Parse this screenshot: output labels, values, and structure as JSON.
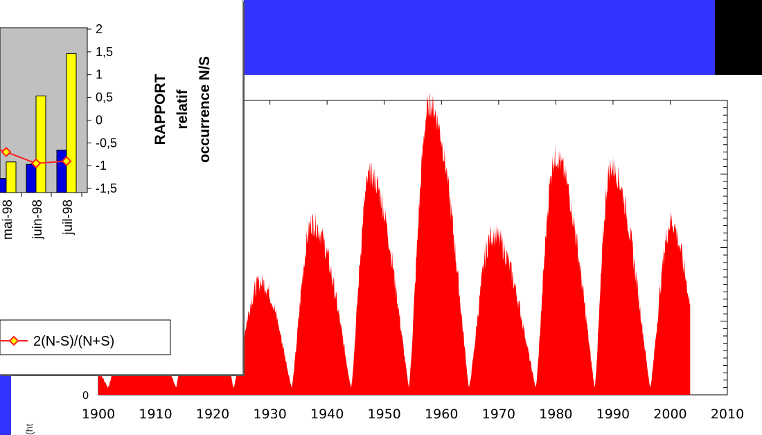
{
  "colors": {
    "background": "#000000",
    "banner": "#3333ff",
    "plot_bg": "#ffffff",
    "sunspot_fill": "#ff0000",
    "inset_plot_bg": "#c0c0c0",
    "bar_north": "#0000dd",
    "bar_south": "#ffff00",
    "ratio_line": "#ff2020"
  },
  "main_plot": {
    "cut_ylabel": "(ht",
    "y_zero_label": "0"
  },
  "inset": {
    "y2_label_lines": [
      "RAPPORT",
      "relatif",
      "occurrence N/S"
    ],
    "legend_entry": "2(N-S)/(N+S)"
  },
  "chart_data": [
    {
      "type": "area",
      "x_tick_labels": [
        "1900",
        "1910",
        "1920",
        "1930",
        "1940",
        "1950",
        "1960",
        "1970",
        "1980",
        "1990",
        "2000",
        "2010"
      ],
      "xlim": [
        1900,
        2010
      ],
      "y_tick_labels": [
        "0"
      ],
      "ylim": [
        0,
        200
      ],
      "grid": false,
      "cycles": [
        {
          "min_year": 1901.7,
          "max_year": 1906.0,
          "max_value": 64
        },
        {
          "min_year": 1913.6,
          "max_year": 1917.6,
          "max_value": 104
        },
        {
          "min_year": 1923.6,
          "max_year": 1928.4,
          "max_value": 78
        },
        {
          "min_year": 1933.8,
          "max_year": 1937.4,
          "max_value": 119
        },
        {
          "min_year": 1944.2,
          "max_year": 1947.5,
          "max_value": 152
        },
        {
          "min_year": 1954.3,
          "max_year": 1957.9,
          "max_value": 201
        },
        {
          "min_year": 1964.8,
          "max_year": 1968.9,
          "max_value": 111
        },
        {
          "min_year": 1976.5,
          "max_year": 1979.9,
          "max_value": 165
        },
        {
          "min_year": 1986.8,
          "max_year": 1989.6,
          "max_value": 158
        },
        {
          "min_year": 1996.5,
          "max_year": 2000.3,
          "max_value": 121
        }
      ],
      "data_end_year": 2003.5,
      "end_value": 62
    },
    {
      "type": "bar",
      "categories": [
        "mai-98",
        "juin-98",
        "juil-98"
      ],
      "series": [
        {
          "values": [
            0.6,
            1.2,
            1.8
          ]
        },
        {
          "values": [
            1.3,
            4.1,
            5.9
          ]
        }
      ],
      "line_series": {
        "name": "2(N-S)/(N+S)",
        "values": [
          -0.7,
          -0.95,
          -0.9
        ]
      },
      "y2_tick_labels": [
        "2",
        "1,5",
        "1",
        "0,5",
        "0",
        "-0,5",
        "-1",
        "-1,5"
      ],
      "y2lim": [
        -1.5,
        2
      ],
      "y2_label": "RAPPORT relatif occurrence N/S"
    }
  ]
}
